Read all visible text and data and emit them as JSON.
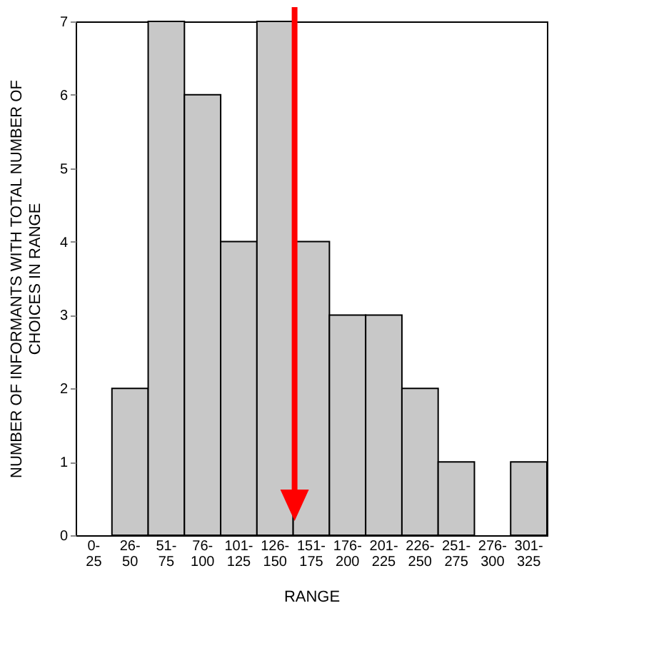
{
  "chart_data": {
    "type": "bar",
    "xlabel": "RANGE",
    "ylabel": "NUMBER OF INFORMANTS WITH TOTAL NUMBER OF CHOICES IN RANGE",
    "categories": [
      "0- 25",
      "26- 50",
      "51- 75",
      "76- 100",
      "101- 125",
      "126- 150",
      "151- 175",
      "176- 200",
      "201- 225",
      "226- 250",
      "251- 275",
      "276- 300",
      "301- 325"
    ],
    "values": [
      0,
      2,
      7,
      6,
      4,
      7,
      4,
      3,
      3,
      2,
      1,
      0,
      1
    ],
    "color": "#c8c8c8",
    "ylim": [
      0,
      7
    ],
    "yticks": [
      0,
      1,
      2,
      3,
      4,
      5,
      6,
      7
    ],
    "grid": false
  }
}
